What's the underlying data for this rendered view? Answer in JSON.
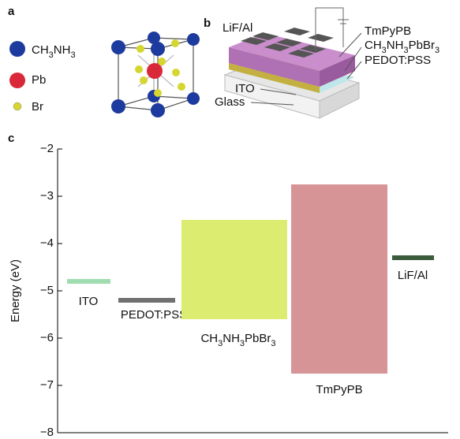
{
  "panel_a": {
    "label": "a",
    "legend": [
      "CH3NH3",
      "Pb",
      "Br"
    ]
  },
  "panel_b": {
    "label": "b",
    "layers": [
      "LiF/Al",
      "TmPyPB",
      "CH3NH3PbBr3",
      "PEDOT:PSS",
      "ITO",
      "Glass"
    ]
  },
  "chart_data": {
    "type": "energy-level",
    "panel_label": "c",
    "y_label": "Energy (eV)",
    "ylim": [
      -8,
      -2
    ],
    "yticks": [
      {
        "value": -2,
        "label": "−2"
      },
      {
        "value": -3,
        "label": "−3"
      },
      {
        "value": -4,
        "label": "−4"
      },
      {
        "value": -5,
        "label": "−5"
      },
      {
        "value": -6,
        "label": "−6"
      },
      {
        "value": -7,
        "label": "−7"
      },
      {
        "value": -8,
        "label": "−8"
      }
    ],
    "series": [
      {
        "name": "ITO",
        "color": "#9fdcb0",
        "values": [
          -4.8
        ]
      },
      {
        "name": "PEDOT:PSS",
        "color": "#707070",
        "values": [
          -5.2
        ]
      },
      {
        "name": "CH3NH3PbBr3",
        "color": "#dcec70",
        "values": [
          -3.5,
          -5.6
        ]
      },
      {
        "name": "TmPyPB",
        "color": "#d79496",
        "values": [
          -2.75,
          -6.75
        ]
      },
      {
        "name": "LiF/Al",
        "color": "#3c5a3c",
        "values": [
          -4.3
        ]
      }
    ]
  }
}
